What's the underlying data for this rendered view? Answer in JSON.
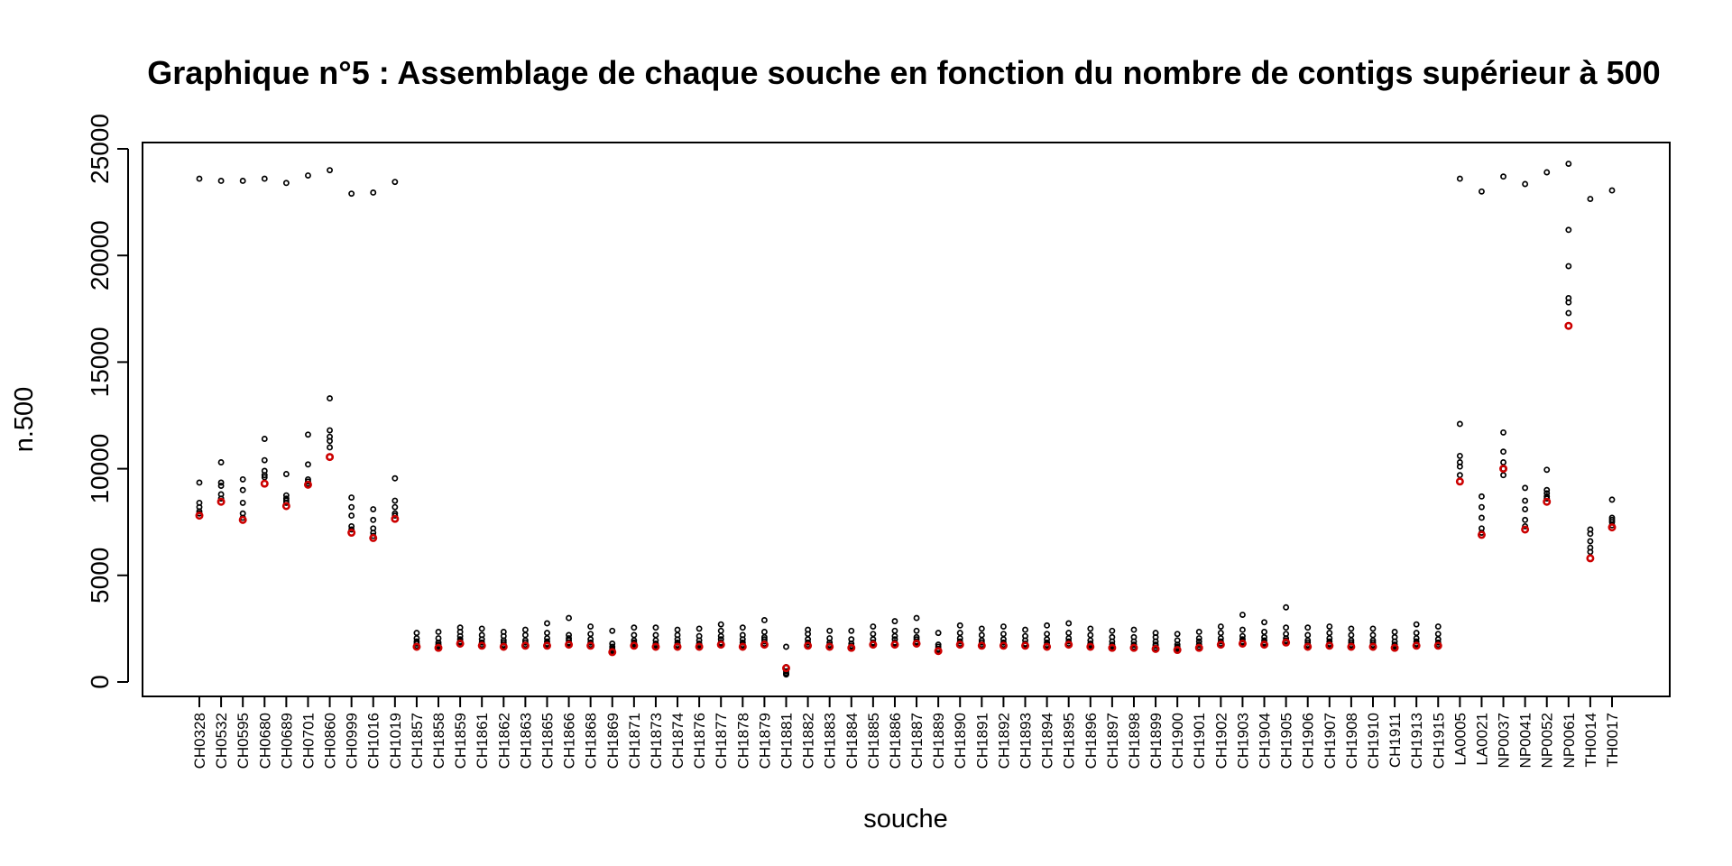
{
  "chart_data": {
    "type": "scatter",
    "title": "Graphique n°5 : Assemblage de chaque souche en fonction du nombre de contigs supérieur à 500",
    "xlabel": "souche",
    "ylabel": "n.500",
    "ylim": [
      -500,
      25000
    ],
    "yticks": [
      0,
      5000,
      10000,
      15000,
      20000,
      25000
    ],
    "grid": false,
    "point_color": "#000000",
    "highlight_color": "#cc0000",
    "categories": [
      "CH0328",
      "CH0532",
      "CH0595",
      "CH0680",
      "CH0689",
      "CH0701",
      "CH0860",
      "CH0999",
      "CH1016",
      "CH1019",
      "CH1857",
      "CH1858",
      "CH1859",
      "CH1861",
      "CH1862",
      "CH1863",
      "CH1865",
      "CH1866",
      "CH1868",
      "CH1869",
      "CH1871",
      "CH1873",
      "CH1874",
      "CH1876",
      "CH1877",
      "CH1878",
      "CH1879",
      "CH1881",
      "CH1882",
      "CH1883",
      "CH1884",
      "CH1885",
      "CH1886",
      "CH1887",
      "CH1889",
      "CH1890",
      "CH1891",
      "CH1892",
      "CH1893",
      "CH1894",
      "CH1895",
      "CH1896",
      "CH1897",
      "CH1898",
      "CH1899",
      "CH1900",
      "CH1901",
      "CH1902",
      "CH1903",
      "CH1904",
      "CH1905",
      "CH1906",
      "CH1907",
      "CH1908",
      "CH1910",
      "CH1911",
      "CH1913",
      "CH1915",
      "LA0005",
      "LA0021",
      "NP0037",
      "NP0041",
      "NP0052",
      "NP0061",
      "TH0014",
      "TH0017"
    ],
    "series": [
      {
        "values": [
          [
            23600,
            9350,
            8400,
            8200,
            8000,
            7900,
            7800
          ],
          [
            23500,
            10300,
            9350,
            9200,
            8800,
            8600,
            8450
          ],
          [
            23500,
            9500,
            9000,
            8400,
            7900,
            7700,
            7600
          ],
          [
            23600,
            11400,
            10400,
            9900,
            9700,
            9600,
            9300
          ],
          [
            23400,
            9750,
            8750,
            8600,
            8500,
            8400,
            8250
          ],
          [
            23750,
            11600,
            10200,
            9500,
            9400,
            9300,
            9250
          ],
          [
            24000,
            13300,
            11800,
            11500,
            11300,
            11000,
            10550
          ],
          [
            22900,
            8650,
            8200,
            7800,
            7300,
            7150,
            7000
          ],
          [
            22950,
            8100,
            7600,
            7200,
            7000,
            6850,
            6750
          ],
          [
            23450,
            9550,
            8500,
            8200,
            7900,
            7800,
            7650
          ],
          [
            2300,
            2050,
            1900,
            1800,
            1700,
            1650,
            1650
          ],
          [
            2350,
            2050,
            1850,
            1750,
            1700,
            1650,
            1600
          ],
          [
            2550,
            2350,
            2150,
            2000,
            1900,
            1850,
            1800
          ],
          [
            2500,
            2200,
            2000,
            1850,
            1750,
            1700,
            1700
          ],
          [
            2350,
            2150,
            1950,
            1850,
            1750,
            1700,
            1650
          ],
          [
            2450,
            2200,
            1950,
            1850,
            1750,
            1700,
            1700
          ],
          [
            2750,
            2300,
            2050,
            1900,
            1800,
            1750,
            1700
          ],
          [
            3000,
            2200,
            2050,
            1950,
            1850,
            1800,
            1750
          ],
          [
            2600,
            2250,
            2000,
            1850,
            1750,
            1700,
            1700
          ],
          [
            2400,
            1800,
            1650,
            1550,
            1500,
            1450,
            1400
          ],
          [
            2550,
            2200,
            1950,
            1850,
            1800,
            1750,
            1700
          ],
          [
            2550,
            2200,
            1950,
            1800,
            1750,
            1700,
            1650
          ],
          [
            2450,
            2200,
            2000,
            1850,
            1750,
            1700,
            1650
          ],
          [
            2500,
            2150,
            1950,
            1800,
            1750,
            1700,
            1650
          ],
          [
            2700,
            2400,
            2150,
            2000,
            1850,
            1800,
            1750
          ],
          [
            2550,
            2200,
            2000,
            1850,
            1750,
            1700,
            1650
          ],
          [
            2900,
            2350,
            2100,
            2000,
            1900,
            1800,
            1750
          ],
          [
            1650,
            700,
            500,
            420,
            380,
            350,
            650
          ],
          [
            2450,
            2250,
            2000,
            1850,
            1750,
            1700,
            1700
          ],
          [
            2400,
            2050,
            1850,
            1750,
            1700,
            1650,
            1650
          ],
          [
            2400,
            2000,
            1800,
            1700,
            1650,
            1600,
            1600
          ],
          [
            2600,
            2250,
            2000,
            1850,
            1800,
            1750,
            1750
          ],
          [
            2850,
            2400,
            2150,
            2000,
            1850,
            1800,
            1750
          ],
          [
            3000,
            2400,
            2100,
            2000,
            1900,
            1850,
            1800
          ],
          [
            2300,
            1750,
            1650,
            1550,
            1500,
            1450,
            1450
          ],
          [
            2650,
            2300,
            2050,
            1900,
            1800,
            1750,
            1750
          ],
          [
            2500,
            2200,
            1950,
            1850,
            1750,
            1700,
            1700
          ],
          [
            2600,
            2250,
            2000,
            1850,
            1750,
            1700,
            1700
          ],
          [
            2450,
            2150,
            1950,
            1800,
            1750,
            1700,
            1700
          ],
          [
            2650,
            2250,
            2000,
            1850,
            1750,
            1700,
            1650
          ],
          [
            2750,
            2300,
            2050,
            1900,
            1800,
            1750,
            1750
          ],
          [
            2500,
            2200,
            1950,
            1800,
            1750,
            1700,
            1650
          ],
          [
            2400,
            2100,
            1900,
            1750,
            1700,
            1650,
            1600
          ],
          [
            2450,
            2100,
            1900,
            1750,
            1650,
            1600,
            1600
          ],
          [
            2300,
            2100,
            1900,
            1750,
            1700,
            1600,
            1550
          ],
          [
            2250,
            1950,
            1750,
            1650,
            1600,
            1550,
            1500
          ],
          [
            2350,
            2050,
            1900,
            1750,
            1650,
            1600,
            1600
          ],
          [
            2600,
            2300,
            2050,
            1900,
            1800,
            1750,
            1750
          ],
          [
            3150,
            2450,
            2150,
            2000,
            1900,
            1850,
            1800
          ],
          [
            2800,
            2350,
            2100,
            1950,
            1850,
            1800,
            1750
          ],
          [
            3500,
            2550,
            2250,
            2050,
            1950,
            1900,
            1850
          ],
          [
            2550,
            2200,
            1950,
            1850,
            1750,
            1700,
            1650
          ],
          [
            2600,
            2300,
            2050,
            1900,
            1800,
            1750,
            1700
          ],
          [
            2500,
            2200,
            1950,
            1850,
            1750,
            1700,
            1650
          ],
          [
            2500,
            2200,
            1950,
            1850,
            1750,
            1700,
            1650
          ],
          [
            2350,
            2100,
            1900,
            1750,
            1700,
            1650,
            1600
          ],
          [
            2700,
            2300,
            2050,
            1900,
            1800,
            1750,
            1700
          ],
          [
            2600,
            2250,
            2000,
            1850,
            1750,
            1700,
            1700
          ],
          [
            23600,
            12100,
            10600,
            10300,
            10100,
            9700,
            9400
          ],
          [
            23000,
            8700,
            8200,
            7700,
            7200,
            7000,
            6900
          ],
          [
            23700,
            11700,
            10800,
            10300,
            10000,
            9700,
            10000
          ],
          [
            23350,
            9100,
            8500,
            8100,
            7600,
            7300,
            7150
          ],
          [
            23900,
            9950,
            9000,
            8850,
            8700,
            8600,
            8450
          ],
          [
            24300,
            21200,
            19500,
            18000,
            17800,
            17300,
            16700
          ],
          [
            22650,
            7150,
            6950,
            6600,
            6300,
            6100,
            5800
          ],
          [
            23050,
            8550,
            7700,
            7600,
            7500,
            7350,
            7250
          ]
        ]
      }
    ]
  }
}
